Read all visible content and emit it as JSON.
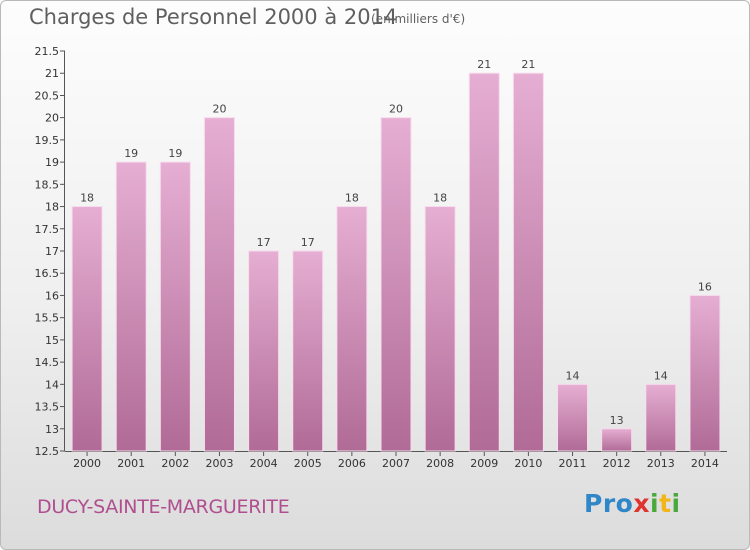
{
  "header": {
    "title": "Charges de Personnel 2000 à 2014",
    "subtitle": "(en milliers d'€)"
  },
  "footer": {
    "place": "DUCY-SAINTE-MARGUERITE",
    "logo": [
      "P",
      "r",
      "o",
      "x",
      "i",
      "t",
      "i"
    ]
  },
  "colors": {
    "bar_light": "#e6aed3",
    "bar_dark": "#b06b96",
    "place_text": "#b04f8f",
    "logo": [
      "#2f86c8",
      "#2f86c8",
      "#2f86c8",
      "#e0342f",
      "#4ba83d",
      "#f2b61b",
      "#4ba83d"
    ]
  },
  "chart_data": {
    "type": "bar",
    "title": "Charges de Personnel 2000 à 2014",
    "subtitle": "(en milliers d'€)",
    "categories": [
      "2000",
      "2001",
      "2002",
      "2003",
      "2004",
      "2005",
      "2006",
      "2007",
      "2008",
      "2009",
      "2010",
      "2011",
      "2012",
      "2013",
      "2014"
    ],
    "values": [
      18,
      19,
      19,
      20,
      17,
      17,
      18,
      20,
      18,
      21,
      21,
      14,
      13,
      14,
      16
    ],
    "ylim": [
      12.5,
      21.5
    ],
    "yticks": [
      "12.5",
      "13",
      "13.5",
      "14",
      "14.5",
      "15",
      "15.5",
      "16",
      "16.5",
      "17",
      "17.5",
      "18",
      "18.5",
      "19",
      "19.5",
      "20",
      "20.5",
      "21",
      "21.5"
    ],
    "grid": false,
    "legend": "none"
  }
}
